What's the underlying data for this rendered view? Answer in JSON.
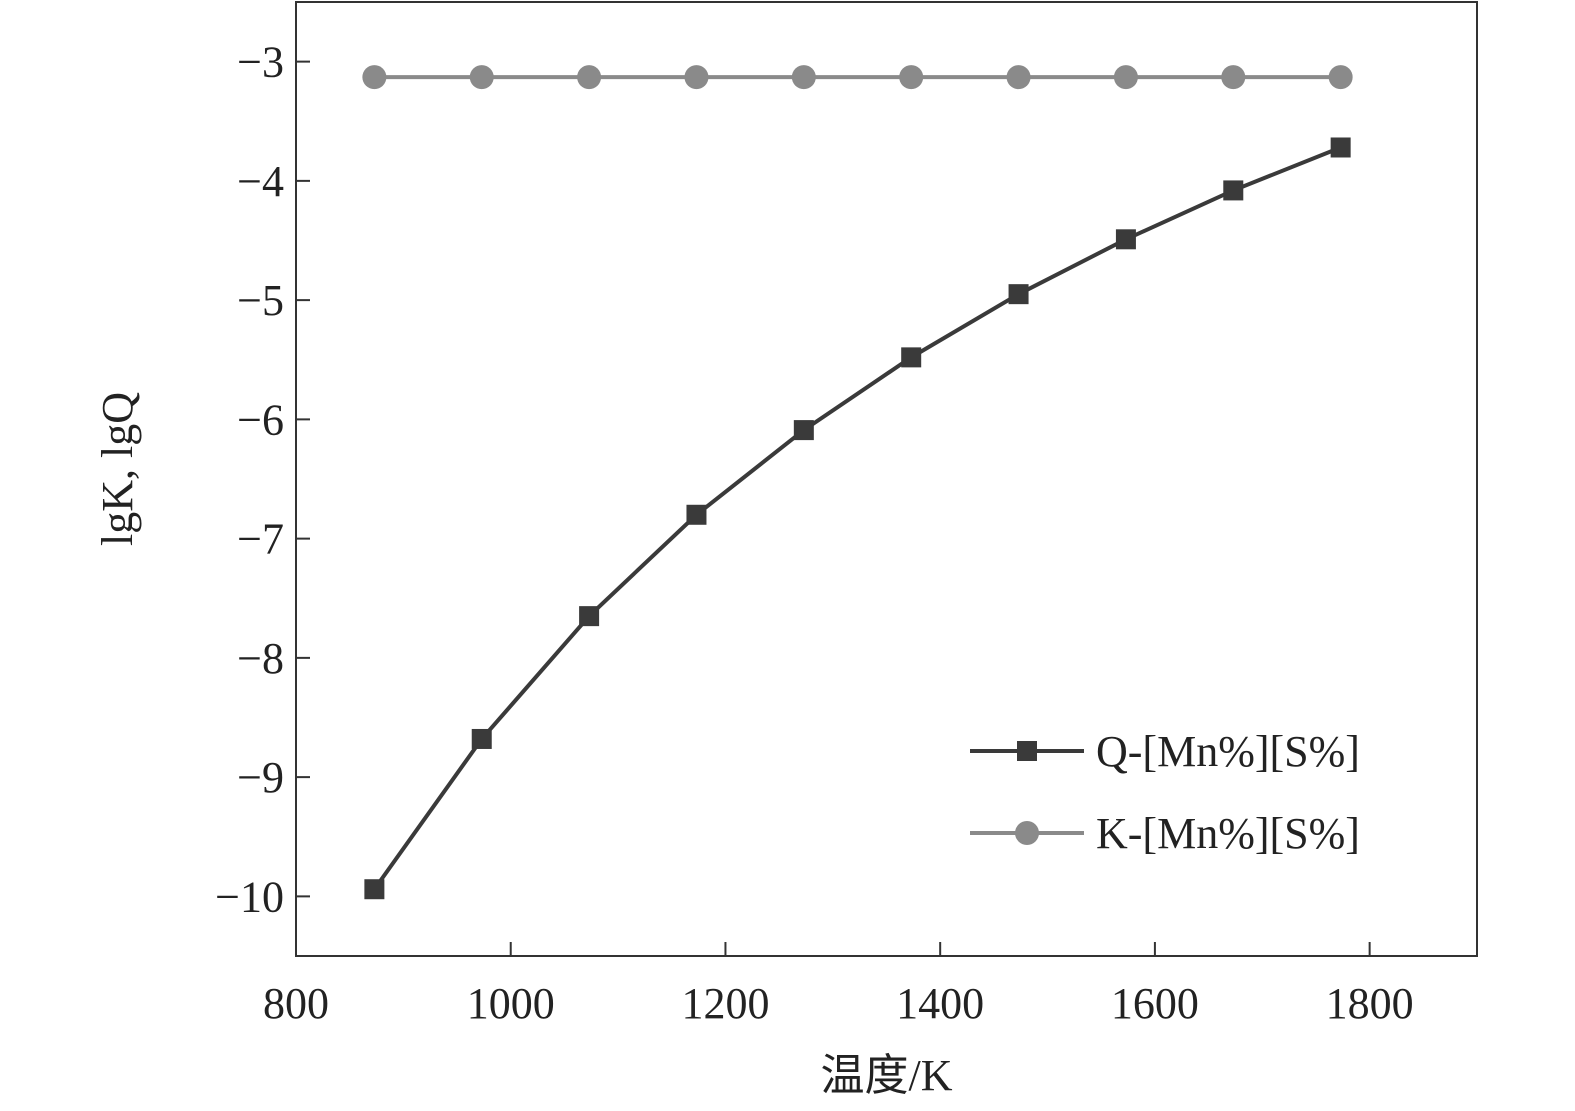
{
  "chart_data": {
    "type": "line",
    "xlabel": "温度/K",
    "ylabel": "lgK, lgQ",
    "xlim": [
      800,
      1900
    ],
    "ylim": [
      -10.5,
      -2.5
    ],
    "x_ticks": [
      "800",
      "1000",
      "1200",
      "1400",
      "1600",
      "1800"
    ],
    "y_ticks": [
      "−3",
      "−4",
      "−5",
      "−6",
      "−7",
      "−8",
      "−9",
      "−10"
    ],
    "legend_position": "lower-right",
    "x": [
      873,
      973,
      1073,
      1173,
      1273,
      1373,
      1473,
      1573,
      1673,
      1773
    ],
    "series": [
      {
        "name": "Q-[Mn%][S%]",
        "marker": "square",
        "color": "#3a3a3a",
        "values": [
          -9.94,
          -8.68,
          -7.65,
          -6.8,
          -6.09,
          -5.48,
          -4.95,
          -4.49,
          -4.08,
          -3.72
        ]
      },
      {
        "name": "K-[Mn%][S%]",
        "marker": "circle",
        "color": "#8a8a8a",
        "values": [
          -3.13,
          -3.13,
          -3.13,
          -3.13,
          -3.13,
          -3.13,
          -3.13,
          -3.13,
          -3.13,
          -3.13
        ]
      }
    ]
  }
}
